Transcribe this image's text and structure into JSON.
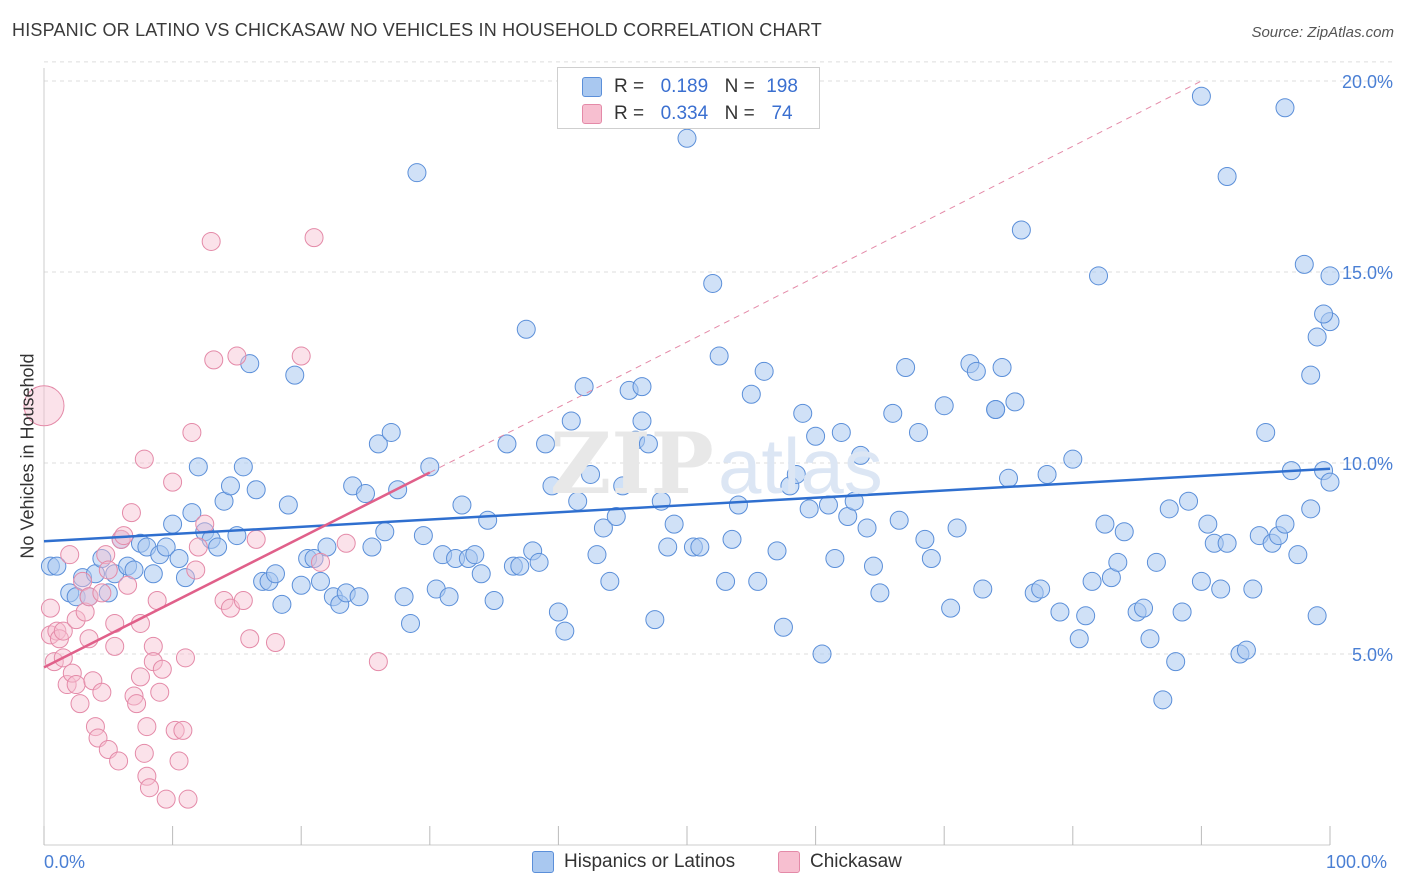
{
  "header": {
    "title": "HISPANIC OR LATINO VS CHICKASAW NO VEHICLES IN HOUSEHOLD CORRELATION CHART",
    "source": "Source: ZipAtlas.com"
  },
  "legend": {
    "rows": [
      {
        "r_label": "R =",
        "r_value": "0.189",
        "n_label": "N =",
        "n_value": "198"
      },
      {
        "r_label": "R =",
        "r_value": "0.334",
        "n_label": "N =",
        "n_value": "74"
      }
    ]
  },
  "bottom_legend": {
    "series1": "Hispanics or Latinos",
    "series2": "Chickasaw"
  },
  "colors": {
    "blue_fill": "#a9c8f0",
    "blue_stroke": "#5b8fd9",
    "blue_line": "#2f6fcf",
    "pink_fill": "#f7bfd0",
    "pink_stroke": "#e48aa8",
    "pink_line": "#e0608a",
    "tick_label": "#4a7fd4",
    "grid": "#dddddd"
  },
  "chart_data": {
    "type": "scatter",
    "title": "HISPANIC OR LATINO VS CHICKASAW NO VEHICLES IN HOUSEHOLD CORRELATION CHART",
    "xlabel": "",
    "ylabel": "No Vehicles in Household",
    "xlim": [
      0,
      100
    ],
    "ylim": [
      0,
      20.5
    ],
    "x_tick_labels": [
      "0.0%",
      "100.0%"
    ],
    "y_ticks": [
      5,
      10,
      15,
      20
    ],
    "y_tick_labels": [
      "5.0%",
      "10.0%",
      "15.0%",
      "20.0%"
    ],
    "grid": true,
    "legend_position": "top-center",
    "series": [
      {
        "name": "Hispanics or Latinos",
        "color": "#a9c8f0",
        "trend": {
          "x0": 0,
          "y0": 7.95,
          "x1": 100,
          "y1": 9.85
        },
        "points": [
          [
            0.5,
            7.3
          ],
          [
            1,
            7.3
          ],
          [
            2,
            6.6
          ],
          [
            2.5,
            6.5
          ],
          [
            3,
            7
          ],
          [
            3.5,
            6.5
          ],
          [
            4,
            7.1
          ],
          [
            4.5,
            7.5
          ],
          [
            5,
            6.6
          ],
          [
            5.5,
            7.1
          ],
          [
            6,
            8
          ],
          [
            6.5,
            7.3
          ],
          [
            7,
            7.2
          ],
          [
            7.5,
            7.9
          ],
          [
            8,
            7.8
          ],
          [
            8.5,
            7.1
          ],
          [
            9,
            7.6
          ],
          [
            9.5,
            7.8
          ],
          [
            10,
            8.4
          ],
          [
            10.5,
            7.5
          ],
          [
            11,
            7
          ],
          [
            11.5,
            8.7
          ],
          [
            12,
            9.9
          ],
          [
            12.5,
            8.2
          ],
          [
            13,
            8
          ],
          [
            13.5,
            7.8
          ],
          [
            14,
            9
          ],
          [
            14.5,
            9.4
          ],
          [
            15,
            8.1
          ],
          [
            15.5,
            9.9
          ],
          [
            16,
            12.6
          ],
          [
            16.5,
            9.3
          ],
          [
            17,
            6.9
          ],
          [
            17.5,
            6.9
          ],
          [
            18,
            7.1
          ],
          [
            18.5,
            6.3
          ],
          [
            19,
            8.9
          ],
          [
            19.5,
            12.3
          ],
          [
            20,
            6.8
          ],
          [
            20.5,
            7.5
          ],
          [
            21,
            7.5
          ],
          [
            21.5,
            6.9
          ],
          [
            22,
            7.8
          ],
          [
            22.5,
            6.5
          ],
          [
            23,
            6.3
          ],
          [
            23.5,
            6.6
          ],
          [
            24,
            9.4
          ],
          [
            24.5,
            6.5
          ],
          [
            25,
            9.2
          ],
          [
            25.5,
            7.8
          ],
          [
            26,
            10.5
          ],
          [
            26.5,
            8.2
          ],
          [
            27,
            10.8
          ],
          [
            27.5,
            9.3
          ],
          [
            28,
            6.5
          ],
          [
            28.5,
            5.8
          ],
          [
            29,
            17.6
          ],
          [
            29.5,
            8.1
          ],
          [
            30,
            9.9
          ],
          [
            30.5,
            6.7
          ],
          [
            31,
            7.6
          ],
          [
            31.5,
            6.5
          ],
          [
            32,
            7.5
          ],
          [
            32.5,
            8.9
          ],
          [
            33,
            7.5
          ],
          [
            33.5,
            7.6
          ],
          [
            34,
            7.1
          ],
          [
            34.5,
            8.5
          ],
          [
            35,
            6.4
          ],
          [
            36,
            10.5
          ],
          [
            36.5,
            7.3
          ],
          [
            37,
            7.3
          ],
          [
            37.5,
            13.5
          ],
          [
            38,
            7.7
          ],
          [
            38.5,
            7.4
          ],
          [
            39,
            10.5
          ],
          [
            39.5,
            9.4
          ],
          [
            40,
            6.1
          ],
          [
            40.5,
            5.6
          ],
          [
            41,
            11.1
          ],
          [
            41.5,
            9
          ],
          [
            42,
            12
          ],
          [
            42.5,
            9.7
          ],
          [
            43,
            7.6
          ],
          [
            43.5,
            8.3
          ],
          [
            44,
            6.9
          ],
          [
            44.5,
            8.6
          ],
          [
            45,
            9.4
          ],
          [
            45.5,
            11.9
          ],
          [
            46,
            10.6
          ],
          [
            46.5,
            12
          ],
          [
            46.5,
            11.1
          ],
          [
            47,
            10.5
          ],
          [
            47.5,
            5.9
          ],
          [
            48,
            9
          ],
          [
            48.5,
            7.8
          ],
          [
            49,
            8.4
          ],
          [
            50,
            18.5
          ],
          [
            50.5,
            7.8
          ],
          [
            51,
            7.8
          ],
          [
            52,
            14.7
          ],
          [
            52.5,
            12.8
          ],
          [
            53,
            6.9
          ],
          [
            53.5,
            8
          ],
          [
            54,
            8.9
          ],
          [
            55,
            11.8
          ],
          [
            55.5,
            6.9
          ],
          [
            56,
            12.4
          ],
          [
            57,
            7.7
          ],
          [
            57.5,
            5.7
          ],
          [
            58,
            9.4
          ],
          [
            58.5,
            9.7
          ],
          [
            59,
            11.3
          ],
          [
            59.5,
            8.8
          ],
          [
            60,
            10.7
          ],
          [
            60.5,
            5
          ],
          [
            61,
            8.9
          ],
          [
            61.5,
            7.5
          ],
          [
            62,
            10.8
          ],
          [
            62.5,
            8.6
          ],
          [
            63,
            9
          ],
          [
            63.5,
            10.2
          ],
          [
            64,
            8.3
          ],
          [
            64.5,
            7.3
          ],
          [
            65,
            6.6
          ],
          [
            66,
            11.3
          ],
          [
            66.5,
            8.5
          ],
          [
            67,
            12.5
          ],
          [
            68,
            10.8
          ],
          [
            68.5,
            8
          ],
          [
            69,
            7.5
          ],
          [
            70,
            11.5
          ],
          [
            70.5,
            6.2
          ],
          [
            71,
            8.3
          ],
          [
            72,
            12.6
          ],
          [
            72.5,
            12.4
          ],
          [
            73,
            6.7
          ],
          [
            74,
            11.4
          ],
          [
            74.5,
            12.5
          ],
          [
            75,
            9.6
          ],
          [
            75.5,
            11.6
          ],
          [
            76,
            16.1
          ],
          [
            77,
            6.6
          ],
          [
            77.5,
            6.7
          ],
          [
            78,
            9.7
          ],
          [
            79,
            6.1
          ],
          [
            80,
            10.1
          ],
          [
            80.5,
            5.4
          ],
          [
            81,
            6
          ],
          [
            81.5,
            6.9
          ],
          [
            82,
            14.9
          ],
          [
            82.5,
            8.4
          ],
          [
            83,
            7
          ],
          [
            83.5,
            7.4
          ],
          [
            84,
            8.2
          ],
          [
            85,
            6.1
          ],
          [
            85.5,
            6.2
          ],
          [
            86,
            5.4
          ],
          [
            86.5,
            7.4
          ],
          [
            87,
            3.8
          ],
          [
            87.5,
            8.8
          ],
          [
            88,
            4.8
          ],
          [
            88.5,
            6.1
          ],
          [
            89,
            9
          ],
          [
            90,
            6.9
          ],
          [
            90.5,
            8.4
          ],
          [
            91,
            7.9
          ],
          [
            91.5,
            6.7
          ],
          [
            92,
            7.9
          ],
          [
            93,
            5
          ],
          [
            93.5,
            5.1
          ],
          [
            94,
            6.7
          ],
          [
            94.5,
            8.1
          ],
          [
            95,
            10.8
          ],
          [
            95.5,
            7.9
          ],
          [
            96,
            8.1
          ],
          [
            96.5,
            8.4
          ],
          [
            97,
            9.8
          ],
          [
            97.5,
            7.6
          ],
          [
            98,
            15.2
          ],
          [
            98.5,
            12.3
          ],
          [
            99,
            13.3
          ],
          [
            99.5,
            9.8
          ],
          [
            100,
            14.9
          ],
          [
            100,
            13.7
          ],
          [
            100,
            9.5
          ],
          [
            99.5,
            13.9
          ],
          [
            99,
            6
          ],
          [
            98.5,
            8.8
          ],
          [
            96.5,
            19.3
          ],
          [
            92,
            17.5
          ],
          [
            90,
            19.6
          ],
          [
            74,
            11.4
          ]
        ]
      },
      {
        "name": "Chickasaw",
        "color": "#f7bfd0",
        "trend": {
          "x0": 0,
          "y0": 4.65,
          "x1": 30,
          "y1": 9.75
        },
        "trend_extension": {
          "x0": 30,
          "y0": 9.75,
          "x1": 90,
          "y1": 20
        },
        "points": [
          [
            0,
            11.5
          ],
          [
            0.5,
            6.2
          ],
          [
            0.5,
            5.5
          ],
          [
            0.8,
            4.8
          ],
          [
            1,
            5.6
          ],
          [
            1.2,
            5.4
          ],
          [
            1.5,
            5.6
          ],
          [
            1.5,
            4.9
          ],
          [
            1.8,
            4.2
          ],
          [
            2,
            7.6
          ],
          [
            2.2,
            4.5
          ],
          [
            2.5,
            5.9
          ],
          [
            2.5,
            4.2
          ],
          [
            2.8,
            3.7
          ],
          [
            3,
            6.9
          ],
          [
            3.2,
            6.1
          ],
          [
            3.5,
            6.5
          ],
          [
            3.5,
            5.4
          ],
          [
            3.8,
            4.3
          ],
          [
            4,
            3.1
          ],
          [
            4.2,
            2.8
          ],
          [
            4.5,
            6.6
          ],
          [
            4.5,
            4
          ],
          [
            4.8,
            7.6
          ],
          [
            5,
            7.2
          ],
          [
            5,
            2.5
          ],
          [
            5.5,
            5.8
          ],
          [
            5.5,
            5.2
          ],
          [
            5.8,
            2.2
          ],
          [
            6,
            8
          ],
          [
            6.2,
            8.1
          ],
          [
            6.5,
            6.8
          ],
          [
            6.8,
            8.7
          ],
          [
            7,
            3.9
          ],
          [
            7.2,
            3.7
          ],
          [
            7.5,
            5.8
          ],
          [
            7.5,
            4.4
          ],
          [
            7.8,
            10.1
          ],
          [
            7.8,
            2.4
          ],
          [
            8,
            3.1
          ],
          [
            8,
            1.8
          ],
          [
            8.2,
            1.5
          ],
          [
            8.5,
            5.2
          ],
          [
            8.5,
            4.8
          ],
          [
            8.8,
            6.4
          ],
          [
            9,
            4
          ],
          [
            9.2,
            4.6
          ],
          [
            9.5,
            1.2
          ],
          [
            10,
            9.5
          ],
          [
            10.2,
            3
          ],
          [
            10.5,
            2.2
          ],
          [
            10.8,
            3
          ],
          [
            11,
            4.9
          ],
          [
            11.2,
            1.2
          ],
          [
            11.5,
            10.8
          ],
          [
            11.8,
            7.2
          ],
          [
            12,
            7.8
          ],
          [
            12.5,
            8.4
          ],
          [
            13,
            15.8
          ],
          [
            13.2,
            12.7
          ],
          [
            14,
            6.4
          ],
          [
            14.5,
            6.2
          ],
          [
            15,
            12.8
          ],
          [
            15.5,
            6.4
          ],
          [
            16,
            5.4
          ],
          [
            16.5,
            8
          ],
          [
            18,
            5.3
          ],
          [
            20,
            12.8
          ],
          [
            21,
            15.9
          ],
          [
            21.5,
            7.4
          ],
          [
            23.5,
            7.9
          ],
          [
            26,
            4.8
          ]
        ]
      }
    ]
  }
}
